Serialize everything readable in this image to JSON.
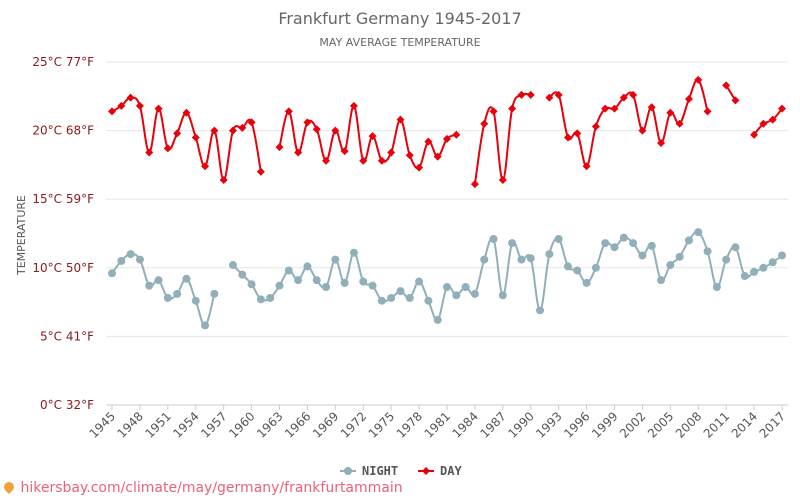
{
  "chart_data": {
    "type": "line",
    "title": "Frankfurt Germany 1945-2017",
    "subtitle": "MAY AVERAGE TEMPERATURE",
    "ylabel": "TEMPERATURE",
    "ylim": [
      0,
      25
    ],
    "y_ticks": [
      {
        "value": 0,
        "label": "0°C 32°F"
      },
      {
        "value": 5,
        "label": "5°C 41°F"
      },
      {
        "value": 10,
        "label": "10°C 50°F"
      },
      {
        "value": 15,
        "label": "15°C 59°F"
      },
      {
        "value": 20,
        "label": "20°C 68°F"
      },
      {
        "value": 25,
        "label": "25°C 77°F"
      }
    ],
    "x_ticks": [
      1945,
      1948,
      1951,
      1954,
      1957,
      1960,
      1963,
      1966,
      1969,
      1972,
      1975,
      1978,
      1981,
      1984,
      1987,
      1990,
      1993,
      1996,
      1999,
      2002,
      2005,
      2008,
      2011,
      2014,
      2017
    ],
    "x": [
      1945,
      1946,
      1947,
      1948,
      1949,
      1950,
      1951,
      1952,
      1953,
      1954,
      1955,
      1956,
      1957,
      1958,
      1959,
      1960,
      1961,
      1962,
      1963,
      1964,
      1965,
      1966,
      1967,
      1968,
      1969,
      1970,
      1971,
      1972,
      1973,
      1974,
      1975,
      1976,
      1977,
      1978,
      1979,
      1980,
      1981,
      1982,
      1983,
      1984,
      1985,
      1986,
      1987,
      1988,
      1989,
      1990,
      1991,
      1992,
      1993,
      1994,
      1995,
      1996,
      1997,
      1998,
      1999,
      2000,
      2001,
      2002,
      2003,
      2004,
      2005,
      2006,
      2007,
      2008,
      2009,
      2010,
      2011,
      2012,
      2013,
      2014,
      2015,
      2016,
      2017
    ],
    "series": [
      {
        "name": "NIGHT",
        "color": "#90afba",
        "marker": "circle",
        "values": [
          9.6,
          10.5,
          11.0,
          10.6,
          8.7,
          9.1,
          7.8,
          8.1,
          9.2,
          7.6,
          5.8,
          8.1,
          null,
          10.2,
          9.5,
          8.8,
          7.7,
          7.8,
          8.7,
          9.8,
          9.1,
          10.1,
          9.1,
          8.6,
          10.6,
          8.9,
          11.1,
          9.0,
          8.7,
          7.6,
          7.8,
          8.3,
          7.8,
          9.0,
          7.6,
          6.2,
          8.6,
          8.0,
          8.6,
          8.1,
          10.6,
          12.1,
          8.0,
          11.8,
          10.6,
          10.7,
          6.9,
          11.0,
          12.1,
          10.1,
          9.8,
          8.9,
          10.0,
          11.8,
          11.5,
          12.2,
          11.8,
          10.9,
          11.6,
          9.1,
          10.2,
          10.8,
          12.0,
          12.6,
          11.2,
          8.6,
          10.6,
          11.5,
          9.4,
          9.7,
          10.0,
          10.4,
          10.9
        ]
      },
      {
        "name": "DAY",
        "color": "#e8000b",
        "marker": "diamond",
        "values": [
          21.4,
          21.8,
          22.4,
          21.8,
          18.4,
          21.6,
          18.7,
          19.8,
          21.3,
          19.5,
          17.4,
          20.0,
          16.4,
          20.0,
          20.2,
          20.6,
          17.0,
          null,
          18.8,
          21.4,
          18.4,
          20.6,
          20.1,
          17.8,
          20.0,
          18.5,
          21.8,
          17.8,
          19.6,
          17.8,
          18.4,
          20.8,
          18.2,
          17.3,
          19.2,
          18.1,
          19.4,
          19.7,
          null,
          16.1,
          20.5,
          21.4,
          16.4,
          21.6,
          22.6,
          22.6,
          null,
          22.4,
          22.6,
          19.5,
          19.8,
          17.4,
          20.3,
          21.6,
          21.6,
          22.4,
          22.6,
          20.0,
          21.7,
          19.1,
          21.3,
          20.5,
          22.3,
          23.7,
          21.4,
          null,
          23.3,
          22.2,
          null,
          19.7,
          20.5,
          20.8,
          21.6
        ]
      }
    ],
    "grid": true,
    "legend_position": "bottom-center"
  },
  "footer": {
    "text": "hikersbay.com/climate/may/germany/frankfurtammain"
  }
}
